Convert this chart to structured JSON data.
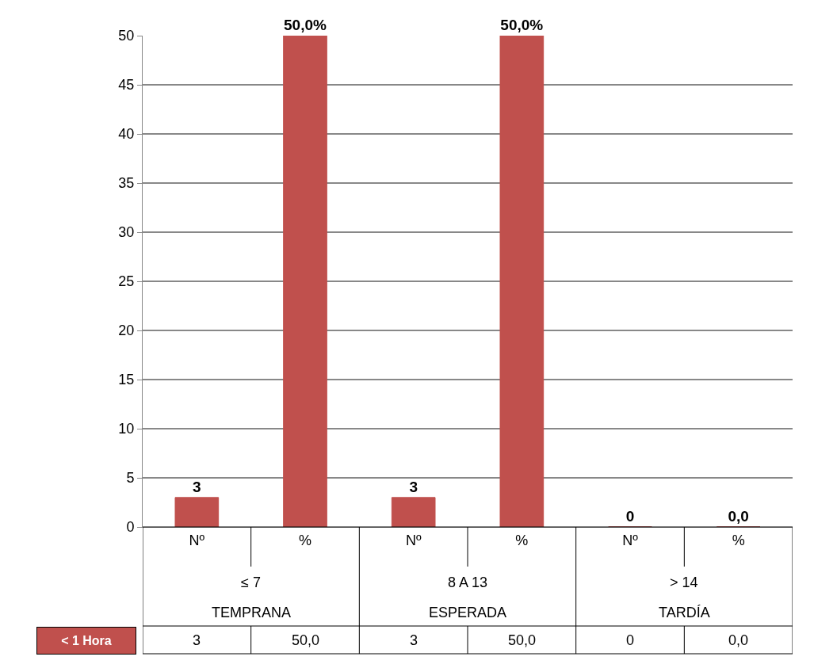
{
  "chart_data": {
    "type": "bar",
    "categories": [
      "Nº",
      "%",
      "Nº",
      "%",
      "Nº",
      "%"
    ],
    "series": [
      {
        "name": "< 1 Hora",
        "color": "#c0504d",
        "values": [
          3,
          50,
          3,
          50,
          0,
          0
        ],
        "value_labels": [
          "3",
          "50,0%",
          "3",
          "50,0%",
          "0",
          "0,0"
        ]
      }
    ],
    "ylim": [
      0,
      50
    ],
    "yticks": [
      0,
      5,
      10,
      15,
      20,
      25,
      30,
      35,
      40,
      45,
      50
    ],
    "grid": "y",
    "legend": "bottom left",
    "annotations": [
      "≤ 7",
      "8 A 13",
      "> 14",
      "TEMPRANA",
      "ESPERADA",
      "TARDÍA",
      "3",
      "50,0",
      "3",
      "50,0",
      "0",
      "0,0"
    ]
  }
}
